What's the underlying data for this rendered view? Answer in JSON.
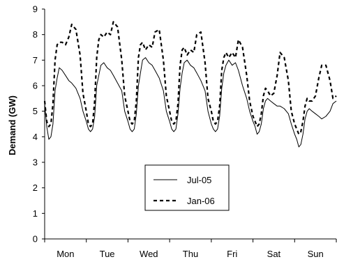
{
  "chart_data": {
    "type": "line",
    "title": "",
    "xlabel": "",
    "ylabel": "Demand (GW)",
    "ylim": [
      0,
      9
    ],
    "yticks": [
      0,
      1,
      2,
      3,
      4,
      5,
      6,
      7,
      8,
      9
    ],
    "categories": [
      "Mon",
      "Tue",
      "Wed",
      "Thu",
      "Fri",
      "Sat",
      "Sun"
    ],
    "grid": "none",
    "legend_position": "center-bottom",
    "colors": {
      "line": "#000000",
      "axis": "#000000",
      "background": "#ffffff"
    },
    "x": [
      0,
      0.05,
      0.1,
      0.15,
      0.2,
      0.25,
      0.3,
      0.35,
      0.42,
      0.5,
      0.58,
      0.65,
      0.75,
      0.85,
      0.92,
      1.0,
      1.05,
      1.1,
      1.15,
      1.2,
      1.25,
      1.3,
      1.35,
      1.42,
      1.5,
      1.58,
      1.65,
      1.75,
      1.85,
      1.92,
      2.0,
      2.05,
      2.1,
      2.15,
      2.2,
      2.25,
      2.3,
      2.35,
      2.42,
      2.5,
      2.58,
      2.65,
      2.75,
      2.85,
      2.92,
      3.0,
      3.05,
      3.1,
      3.15,
      3.2,
      3.25,
      3.3,
      3.35,
      3.42,
      3.5,
      3.58,
      3.65,
      3.75,
      3.85,
      3.92,
      4.0,
      4.05,
      4.1,
      4.15,
      4.2,
      4.25,
      4.3,
      4.35,
      4.42,
      4.5,
      4.58,
      4.65,
      4.75,
      4.85,
      4.92,
      5.0,
      5.05,
      5.1,
      5.15,
      5.2,
      5.25,
      5.3,
      5.35,
      5.42,
      5.5,
      5.58,
      5.65,
      5.75,
      5.85,
      5.92,
      6.0,
      6.05,
      6.1,
      6.15,
      6.2,
      6.25,
      6.3,
      6.35,
      6.42,
      6.5,
      6.58,
      6.65,
      6.75,
      6.85,
      6.92,
      7.0
    ],
    "series": [
      {
        "name": "Jul-05",
        "style": "solid",
        "values": [
          5.3,
          4.4,
          3.9,
          4.0,
          4.5,
          5.8,
          6.3,
          6.7,
          6.6,
          6.4,
          6.2,
          6.1,
          5.9,
          5.5,
          5.0,
          4.6,
          4.3,
          4.2,
          4.3,
          4.8,
          6.0,
          6.4,
          6.8,
          6.9,
          6.7,
          6.6,
          6.4,
          6.1,
          5.8,
          5.0,
          4.6,
          4.3,
          4.2,
          4.3,
          4.9,
          6.0,
          6.5,
          7.0,
          7.1,
          6.9,
          6.8,
          6.6,
          6.3,
          5.8,
          5.0,
          4.6,
          4.3,
          4.2,
          4.3,
          4.9,
          5.9,
          6.5,
          6.9,
          7.0,
          6.8,
          6.7,
          6.5,
          6.2,
          5.8,
          5.0,
          4.5,
          4.3,
          4.2,
          4.3,
          4.8,
          5.9,
          6.5,
          6.8,
          7.0,
          6.8,
          6.9,
          6.6,
          6.0,
          5.5,
          5.0,
          4.6,
          4.4,
          4.1,
          4.2,
          4.5,
          5.1,
          5.4,
          5.5,
          5.4,
          5.3,
          5.2,
          5.2,
          5.1,
          4.9,
          4.5,
          4.1,
          3.9,
          3.6,
          3.7,
          4.1,
          4.7,
          5.0,
          5.1,
          5.0,
          4.9,
          4.8,
          4.7,
          4.8,
          5.0,
          5.3,
          5.4
        ]
      },
      {
        "name": "Jan-06",
        "style": "dashed",
        "values": [
          5.4,
          4.6,
          4.4,
          4.5,
          5.3,
          7.0,
          7.6,
          7.7,
          7.7,
          7.6,
          7.9,
          8.4,
          8.2,
          7.2,
          5.7,
          5.0,
          4.5,
          4.4,
          4.5,
          5.4,
          7.1,
          7.8,
          8.0,
          7.9,
          8.1,
          8.0,
          8.5,
          8.3,
          7.0,
          5.6,
          5.0,
          4.6,
          4.5,
          4.6,
          5.4,
          7.1,
          7.6,
          7.7,
          7.4,
          7.6,
          7.5,
          8.1,
          8.2,
          7.0,
          5.6,
          5.0,
          4.6,
          4.5,
          4.6,
          5.3,
          6.8,
          7.4,
          7.5,
          7.2,
          7.4,
          7.3,
          8.0,
          8.1,
          6.9,
          5.5,
          5.0,
          4.6,
          4.5,
          4.6,
          5.2,
          6.6,
          7.1,
          7.3,
          7.1,
          7.3,
          7.1,
          7.8,
          7.5,
          6.4,
          5.4,
          4.8,
          4.6,
          4.4,
          4.5,
          4.9,
          5.6,
          5.9,
          5.8,
          5.6,
          5.7,
          6.4,
          7.3,
          7.1,
          6.2,
          5.0,
          4.5,
          4.3,
          4.1,
          4.2,
          4.6,
          5.2,
          5.5,
          5.4,
          5.4,
          5.6,
          6.3,
          6.8,
          6.8,
          6.2,
          5.5,
          5.6
        ]
      }
    ]
  }
}
